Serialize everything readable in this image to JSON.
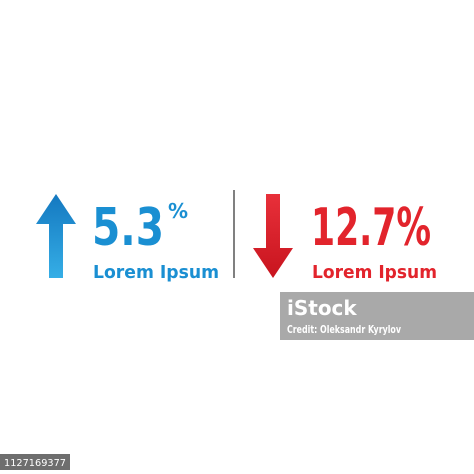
{
  "left": {
    "value": 5.3,
    "unit": "%",
    "label": "Lorem Ipsum"
  },
  "right": {
    "value": "12.7%",
    "label": "Lorem Ipsum"
  },
  "watermark": {
    "logo": "iStock",
    "credit": "Credit: Oleksandr Kyrylov"
  },
  "image_id": "1127169377"
}
